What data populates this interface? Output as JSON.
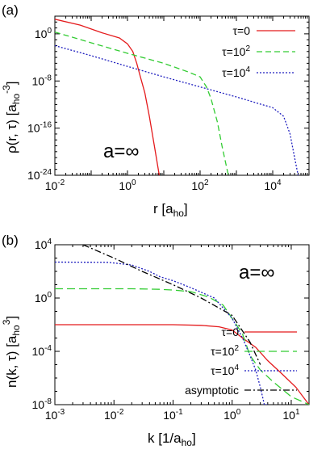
{
  "chart_data": [
    {
      "type": "line",
      "panel_label": "(a)",
      "annotation": "a=∞",
      "xlabel": "r [a",
      "xlabel_sub": "ho",
      "xlabel_close": "]",
      "ylabel": "ρ(r, τ) [a",
      "ylabel_sub": "ho",
      "ylabel_sup": "-3",
      "ylabel_close": "]",
      "x_scale": "log",
      "y_scale": "log",
      "xlim": [
        0.01,
        100000
      ],
      "ylim": [
        1e-24,
        1000.0
      ],
      "x_ticks": [
        {
          "value": 0.01,
          "base": "10",
          "exp": "-2"
        },
        {
          "value": 1,
          "base": "10",
          "exp": "0"
        },
        {
          "value": 100,
          "base": "10",
          "exp": "2"
        },
        {
          "value": 10000,
          "base": "10",
          "exp": "4"
        }
      ],
      "y_ticks": [
        {
          "value": 1,
          "base": "10",
          "exp": "0"
        },
        {
          "value": 1e-08,
          "base": "10",
          "exp": "-8"
        },
        {
          "value": 1e-16,
          "base": "10",
          "exp": "-16"
        },
        {
          "value": 1e-24,
          "base": "10",
          "exp": "-24"
        }
      ],
      "legend_position": "top-right",
      "series": [
        {
          "name": "τ=0",
          "label_base": "τ=0",
          "label_exp": "",
          "color": "#e41a1c",
          "dash": "",
          "x": [
            0.01,
            0.05,
            0.2,
            0.6,
            1.0,
            1.4,
            1.8,
            2.2,
            3.0,
            4.0,
            5.5,
            7.5
          ],
          "y": [
            300,
            30,
            1.5,
            0.2,
            0.02,
            0.001,
            1e-05,
            1e-07,
            1e-10,
            1e-14,
            1e-19,
            1e-24
          ]
        },
        {
          "name": "τ=10^2",
          "label_base": "τ=10",
          "label_exp": "2",
          "color": "#33cc33",
          "dash": "7,4",
          "x": [
            0.01,
            0.1,
            1,
            10,
            50,
            100,
            150,
            200,
            300,
            400,
            600
          ],
          "y": [
            2,
            0.03,
            0.0005,
            1e-05,
            3e-07,
            5e-08,
            1e-09,
            1e-11,
            1e-15,
            1e-19,
            1e-24
          ]
        },
        {
          "name": "τ=10^4",
          "label_base": "τ=10",
          "label_exp": "4",
          "color": "#1f1fbf",
          "dash": "2,2",
          "x": [
            0.01,
            0.1,
            1,
            10,
            100,
            1000,
            5000,
            10000,
            20000,
            30000,
            40000,
            50000
          ],
          "y": [
            0.01,
            0.0002,
            3e-06,
            5e-08,
            1e-09,
            2e-11,
            1e-12,
            3e-13,
            1e-14,
            1e-17,
            1e-21,
            1e-24
          ]
        }
      ]
    },
    {
      "type": "line",
      "panel_label": "(b)",
      "annotation": "a=∞",
      "xlabel": "k [1/a",
      "xlabel_sub": "ho",
      "xlabel_close": "]",
      "ylabel": "n(k, τ) [a",
      "ylabel_sub": "ho",
      "ylabel_sup": "3",
      "ylabel_close": "]",
      "x_scale": "log",
      "y_scale": "log",
      "xlim": [
        0.001,
        20
      ],
      "ylim": [
        1e-08,
        10000.0
      ],
      "x_ticks": [
        {
          "value": 0.001,
          "base": "10",
          "exp": "-3"
        },
        {
          "value": 0.01,
          "base": "10",
          "exp": "-2"
        },
        {
          "value": 0.1,
          "base": "10",
          "exp": "-1"
        },
        {
          "value": 1,
          "base": "10",
          "exp": "0"
        },
        {
          "value": 10,
          "base": "10",
          "exp": "1"
        }
      ],
      "y_ticks": [
        {
          "value": 10000,
          "base": "10",
          "exp": "4"
        },
        {
          "value": 1,
          "base": "10",
          "exp": "0"
        },
        {
          "value": 0.0001,
          "base": "10",
          "exp": "-4"
        },
        {
          "value": 1e-08,
          "base": "10",
          "exp": "-8"
        }
      ],
      "legend_position": "bottom-left",
      "series": [
        {
          "name": "τ=0",
          "label_base": "τ=0",
          "label_exp": "",
          "color": "#e41a1c",
          "dash": "",
          "x": [
            0.001,
            0.1,
            0.3,
            0.6,
            1.0,
            1.5,
            2.5,
            4,
            7,
            12,
            20
          ],
          "y": [
            0.01,
            0.01,
            0.009,
            0.007,
            0.004,
            0.001,
            0.0002,
            2e-05,
            2e-06,
            2e-07,
            1e-08
          ]
        },
        {
          "name": "τ=10^2",
          "label_base": "τ=10",
          "label_exp": "2",
          "color": "#33cc33",
          "dash": "10,5",
          "x": [
            0.001,
            0.02,
            0.06,
            0.1,
            0.2,
            0.4,
            0.7,
            1.0,
            1.5,
            2.0,
            3.0,
            5,
            10,
            20
          ],
          "y": [
            5,
            5,
            4.5,
            4,
            3,
            1.2,
            0.3,
            0.03,
            0.002,
            5e-05,
            4e-06,
            5e-07,
            4e-08,
            1e-08
          ]
        },
        {
          "name": "τ=10^4",
          "label_base": "τ=10",
          "label_exp": "4",
          "color": "#1f1fbf",
          "dash": "2,2",
          "x": [
            0.001,
            0.008,
            0.02,
            0.04,
            0.06,
            0.1,
            0.2,
            0.5,
            1.0,
            1.5,
            2.0,
            2.5,
            3.0,
            3.5,
            4.0
          ],
          "y": [
            500,
            480,
            300,
            100,
            40,
            20,
            6,
            1,
            0.03,
            0.001,
            5e-05,
            4e-06,
            2e-07,
            1e-08,
            1e-08
          ]
        },
        {
          "name": "asymptotic",
          "label_base": "asymptotic",
          "label_exp": "",
          "color": "#000000",
          "dash": "8,3,2,3",
          "x": [
            0.003,
            0.01,
            0.03,
            0.1,
            0.3,
            1,
            2,
            3
          ],
          "y": [
            10000,
            1000,
            100,
            10,
            1,
            0.05,
            0.0005,
            1e-05
          ]
        }
      ]
    }
  ]
}
